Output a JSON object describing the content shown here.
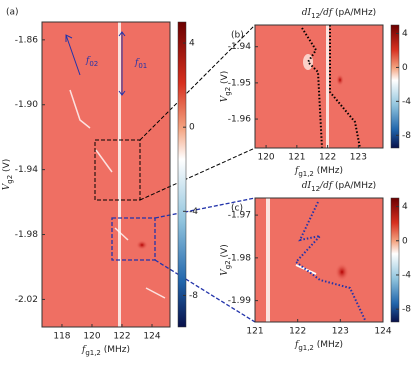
{
  "chart_data": [
    {
      "type": "heatmap",
      "panel_label": "(a)",
      "xlabel": {
        "main": "f",
        "sub": "g1,2",
        "unit": " (MHz)"
      },
      "ylabel": {
        "main": "V",
        "sub": "g2",
        "unit": " (V)"
      },
      "xlim": [
        116.67,
        125.2
      ],
      "xticks": [
        118,
        120,
        122,
        124
      ],
      "ylim": [
        -1.849,
        -2.037
      ],
      "yticks": [
        -1.86,
        {
          "value": -1.9,
          "label": "-1.90"
        },
        -1.94,
        -1.98,
        -2.02
      ],
      "clim": [
        -9.5,
        5
      ],
      "cticks": [
        4,
        0,
        -4,
        -8
      ],
      "annotations": [
        {
          "main": "f",
          "sub": "02"
        },
        {
          "main": "f",
          "sub": "01"
        }
      ]
    },
    {
      "type": "heatmap",
      "panel_label": "(b)",
      "title": {
        "main": "dI",
        "sub": "12",
        "tail": "/df",
        "unit": " (pA/MHz)"
      },
      "xlabel": {
        "main": "f",
        "sub": "g1,2",
        "unit": " (MHz)"
      },
      "ylabel": {
        "main": "V",
        "sub": "g2",
        "unit": " (V)"
      },
      "xlim": [
        119.64,
        123.8
      ],
      "xticks": [
        120,
        121,
        122,
        123
      ],
      "ylim": [
        -1.934,
        -1.968
      ],
      "yticks": [
        -1.94,
        -1.95,
        -1.96
      ],
      "clim": [
        -9.5,
        5
      ],
      "cticks": [
        4,
        0,
        -4,
        -8
      ]
    },
    {
      "type": "heatmap",
      "panel_label": "(c)",
      "title": {
        "main": "dI",
        "sub": "12",
        "tail": "/df",
        "unit": " (pA/MHz)"
      },
      "xlabel": {
        "main": "f",
        "sub": "g1,2",
        "unit": " (MHz)"
      },
      "ylabel": {
        "main": "V",
        "sub": "g2",
        "unit": " (V)"
      },
      "xlim": [
        121,
        124
      ],
      "xticks": [
        121,
        122,
        123,
        124
      ],
      "ylim": [
        -1.966,
        -1.995
      ],
      "yticks": [
        -1.97,
        -1.98,
        -1.99
      ],
      "clim": [
        -9.5,
        5
      ],
      "cticks": [
        4,
        0,
        -4,
        -8
      ]
    }
  ]
}
